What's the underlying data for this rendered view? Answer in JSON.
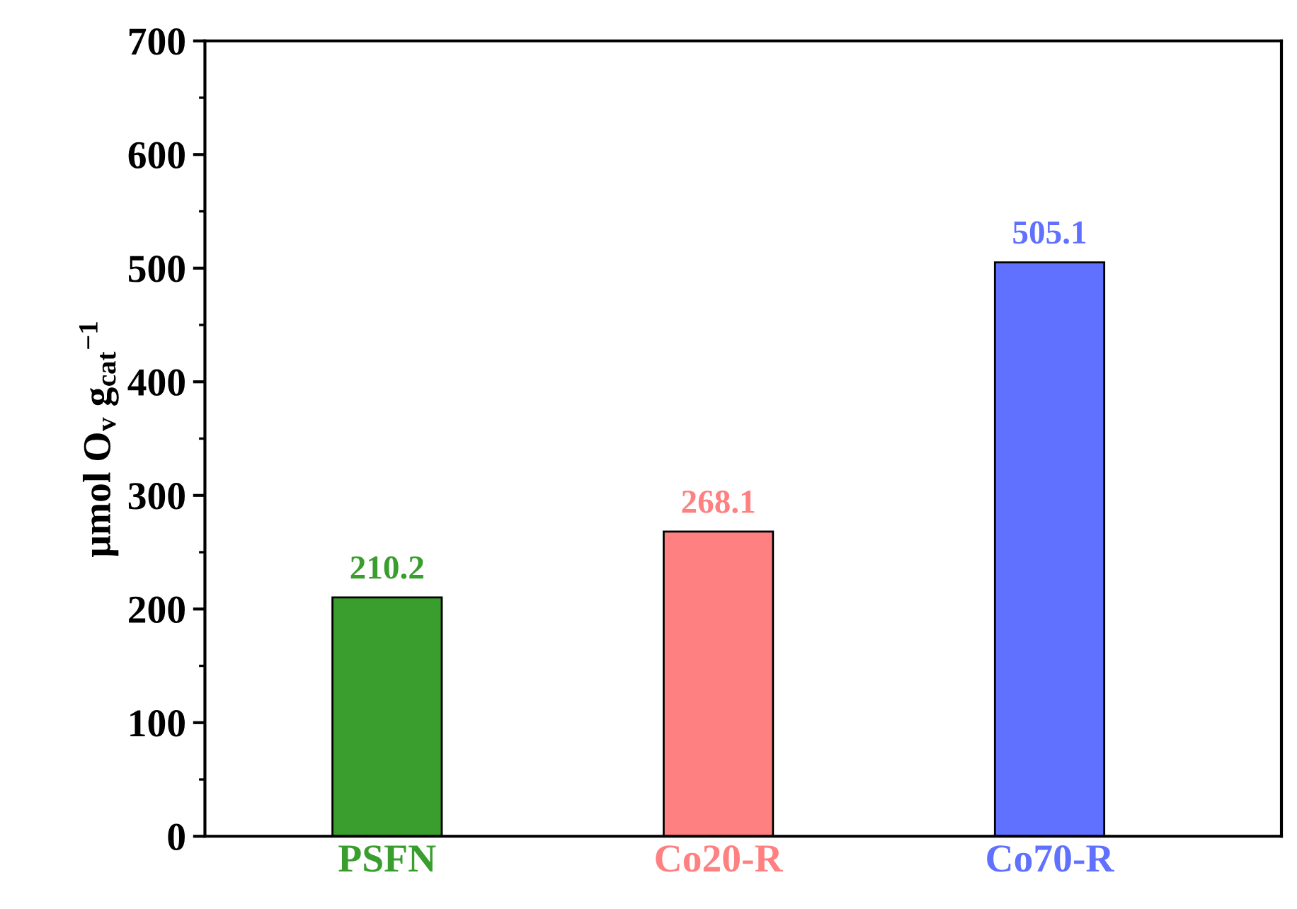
{
  "chart_data": {
    "type": "bar",
    "categories": [
      "PSFN",
      "Co20-R",
      "Co70-R"
    ],
    "values": [
      210.2,
      268.1,
      505.1
    ],
    "colors": [
      "#3a9e2e",
      "#ff8080",
      "#6070ff"
    ],
    "ylabel": "μmol O$_{v}$ g$_{cat}$$^{−1}$",
    "ylim": [
      0,
      700
    ],
    "yticks": [
      0,
      100,
      200,
      300,
      400,
      500,
      600,
      700
    ],
    "data_labels": true,
    "grid": false
  }
}
